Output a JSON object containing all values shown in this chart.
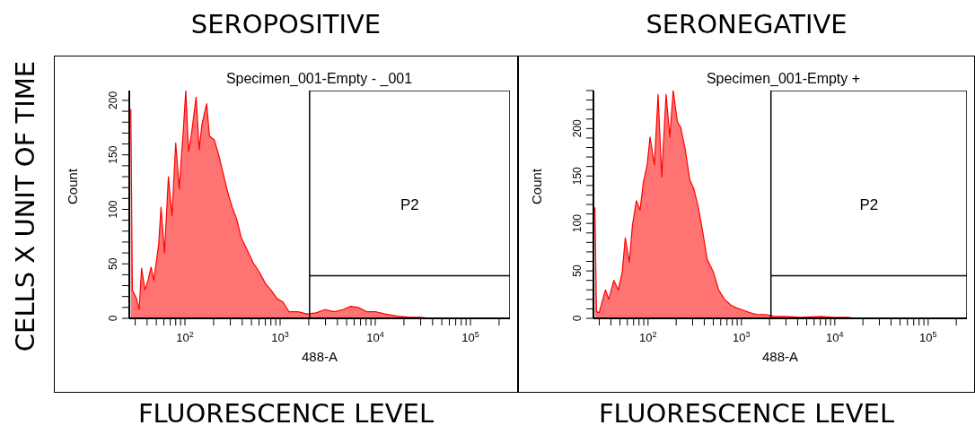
{
  "chart_data": [
    {
      "type": "area",
      "title": "SEROPOSITIVE",
      "subtitle": "Specimen_001-Empty - _001",
      "xlabel": "488-A",
      "ylabel": "Count",
      "annotations": [
        "FLUORESCENCE LEVEL",
        "CELLS X UNIT OF TIME"
      ],
      "log": "x",
      "xlim": [
        26,
        260000
      ],
      "ylim": [
        0,
        209
      ],
      "xticks": [
        {
          "value": 30,
          "label": null
        },
        {
          "value": 40,
          "label": null
        },
        {
          "value": 50,
          "label": null
        },
        {
          "value": 60,
          "label": null
        },
        {
          "value": 70,
          "label": null
        },
        {
          "value": 80,
          "label": null
        },
        {
          "value": 90,
          "label": null
        },
        {
          "value": 100,
          "label": "10$^{2}$"
        },
        {
          "value": 200,
          "label": null
        },
        {
          "value": 300,
          "label": null
        },
        {
          "value": 400,
          "label": null
        },
        {
          "value": 500,
          "label": null
        },
        {
          "value": 600,
          "label": null
        },
        {
          "value": 700,
          "label": null
        },
        {
          "value": 800,
          "label": null
        },
        {
          "value": 900,
          "label": null
        },
        {
          "value": 1000,
          "label": "10$^{3}$"
        },
        {
          "value": 2000,
          "label": null
        },
        {
          "value": 3000,
          "label": null
        },
        {
          "value": 4000,
          "label": null
        },
        {
          "value": 5000,
          "label": null
        },
        {
          "value": 6000,
          "label": null
        },
        {
          "value": 7000,
          "label": null
        },
        {
          "value": 8000,
          "label": null
        },
        {
          "value": 9000,
          "label": null
        },
        {
          "value": 10000,
          "label": "10$^{4}$"
        },
        {
          "value": 20000,
          "label": null
        },
        {
          "value": 30000,
          "label": null
        },
        {
          "value": 40000,
          "label": null
        },
        {
          "value": 50000,
          "label": null
        },
        {
          "value": 60000,
          "label": null
        },
        {
          "value": 70000,
          "label": null
        },
        {
          "value": 80000,
          "label": null
        },
        {
          "value": 90000,
          "label": null
        },
        {
          "value": 100000,
          "label": "10$^{5}$"
        },
        {
          "value": 200000,
          "label": null
        }
      ],
      "yticks": [
        0,
        {
          "value": 10,
          "label": null
        },
        {
          "value": 20,
          "label": null
        },
        {
          "value": 30,
          "label": null
        },
        {
          "value": 40,
          "label": null
        },
        50,
        {
          "value": 60,
          "label": null
        },
        {
          "value": 70,
          "label": null
        },
        {
          "value": 80,
          "label": null
        },
        {
          "value": 90,
          "label": null
        },
        100,
        {
          "value": 110,
          "label": null
        },
        {
          "value": 120,
          "label": null
        },
        {
          "value": 130,
          "label": null
        },
        {
          "value": 140,
          "label": null
        },
        150,
        {
          "value": 160,
          "label": null
        },
        {
          "value": 170,
          "label": null
        },
        {
          "value": 180,
          "label": null
        },
        {
          "value": 190,
          "label": null
        },
        200
      ],
      "ref_lines": [
        {
          "axis": "x",
          "value": 2040,
          "label": "P2",
          "color": "#000000"
        },
        {
          "axis": "y",
          "value": 39,
          "color": "#000000"
        }
      ],
      "series": [
        {
          "color": "#ff0000",
          "x": [
            27,
            28,
            31,
            33,
            35,
            38,
            41,
            44,
            47,
            53,
            56,
            61,
            67,
            73,
            80,
            87,
            96,
            102,
            109,
            117,
            131,
            141,
            151,
            169,
            181,
            203,
            226,
            252,
            281,
            313,
            350,
            390,
            450,
            520,
            600,
            700,
            800,
            930,
            1070,
            1240,
            1540,
            1920,
            2390,
            2960,
            3700,
            4600,
            5500,
            6600,
            8200,
            10200,
            12600,
            17000,
            23000,
            30000,
            38000,
            260000
          ],
          "values": [
            192,
            26,
            18,
            8,
            46,
            26,
            35,
            47,
            35,
            68,
            102,
            60,
            130,
            94,
            161,
            119,
            172,
            209,
            153,
            169,
            203,
            155,
            178,
            197,
            167,
            164,
            150,
            133,
            116,
            102,
            91,
            74,
            63,
            51,
            43,
            32,
            26,
            18,
            15,
            6,
            6,
            4,
            5,
            8,
            6,
            8,
            11,
            10,
            6,
            6,
            4,
            2,
            1,
            1,
            0,
            0
          ]
        }
      ]
    },
    {
      "type": "area",
      "title": "SERONEGATIVE",
      "subtitle": "Specimen_001-Empty +",
      "xlabel": "488-A",
      "ylabel": "Count",
      "annotations": [
        "FLUORESCENCE LEVEL"
      ],
      "log": "x",
      "xlim": [
        26,
        260000
      ],
      "ylim": [
        0,
        240
      ],
      "xticks": [
        {
          "value": 30,
          "label": null
        },
        {
          "value": 40,
          "label": null
        },
        {
          "value": 50,
          "label": null
        },
        {
          "value": 60,
          "label": null
        },
        {
          "value": 70,
          "label": null
        },
        {
          "value": 80,
          "label": null
        },
        {
          "value": 90,
          "label": null
        },
        {
          "value": 100,
          "label": "10$^{2}$"
        },
        {
          "value": 200,
          "label": null
        },
        {
          "value": 300,
          "label": null
        },
        {
          "value": 400,
          "label": null
        },
        {
          "value": 500,
          "label": null
        },
        {
          "value": 600,
          "label": null
        },
        {
          "value": 700,
          "label": null
        },
        {
          "value": 800,
          "label": null
        },
        {
          "value": 900,
          "label": null
        },
        {
          "value": 1000,
          "label": "10$^{3}$"
        },
        {
          "value": 2000,
          "label": null
        },
        {
          "value": 3000,
          "label": null
        },
        {
          "value": 4000,
          "label": null
        },
        {
          "value": 5000,
          "label": null
        },
        {
          "value": 6000,
          "label": null
        },
        {
          "value": 7000,
          "label": null
        },
        {
          "value": 8000,
          "label": null
        },
        {
          "value": 9000,
          "label": null
        },
        {
          "value": 10000,
          "label": "10$^{4}$"
        },
        {
          "value": 20000,
          "label": null
        },
        {
          "value": 30000,
          "label": null
        },
        {
          "value": 40000,
          "label": null
        },
        {
          "value": 50000,
          "label": null
        },
        {
          "value": 60000,
          "label": null
        },
        {
          "value": 70000,
          "label": null
        },
        {
          "value": 80000,
          "label": null
        },
        {
          "value": 90000,
          "label": null
        },
        {
          "value": 100000,
          "label": "10$^{5}$"
        },
        {
          "value": 200000,
          "label": null
        }
      ],
      "yticks": [
        0,
        {
          "value": 10,
          "label": null
        },
        {
          "value": 20,
          "label": null
        },
        {
          "value": 30,
          "label": null
        },
        {
          "value": 40,
          "label": null
        },
        50,
        {
          "value": 60,
          "label": null
        },
        {
          "value": 70,
          "label": null
        },
        {
          "value": 80,
          "label": null
        },
        {
          "value": 90,
          "label": null
        },
        100,
        {
          "value": 110,
          "label": null
        },
        {
          "value": 120,
          "label": null
        },
        {
          "value": 130,
          "label": null
        },
        {
          "value": 140,
          "label": null
        },
        150,
        {
          "value": 160,
          "label": null
        },
        {
          "value": 170,
          "label": null
        },
        {
          "value": 180,
          "label": null
        },
        {
          "value": 190,
          "label": null
        },
        200,
        {
          "value": 210,
          "label": null
        },
        {
          "value": 220,
          "label": null
        },
        {
          "value": 230,
          "label": null
        },
        {
          "value": 240,
          "label": null
        }
      ],
      "ref_lines": [
        {
          "axis": "x",
          "value": 2070,
          "label": "P2",
          "color": "#000000"
        },
        {
          "axis": "y",
          "value": 45,
          "color": "#000000"
        }
      ],
      "series": [
        {
          "color": "#ff0000",
          "x": [
            27,
            28,
            30,
            35,
            38,
            43,
            48,
            53,
            57,
            63,
            68,
            75,
            82,
            89,
            98,
            105,
            117,
            128,
            140,
            156,
            171,
            186,
            206,
            224,
            250,
            280,
            310,
            345,
            385,
            430,
            500,
            570,
            660,
            770,
            880,
            1020,
            1220,
            1470,
            1830,
            2240,
            3000,
            4300,
            7200,
            9600,
            13700,
            17000,
            260000
          ],
          "values": [
            117,
            7,
            6,
            30,
            20,
            40,
            30,
            49,
            85,
            59,
            98,
            124,
            114,
            143,
            162,
            191,
            162,
            236,
            149,
            236,
            191,
            240,
            207,
            201,
            178,
            146,
            136,
            117,
            91,
            62,
            49,
            30,
            20,
            14,
            11,
            9,
            6,
            4,
            4,
            2,
            2,
            1,
            2,
            1,
            1,
            0,
            0
          ]
        }
      ]
    }
  ]
}
